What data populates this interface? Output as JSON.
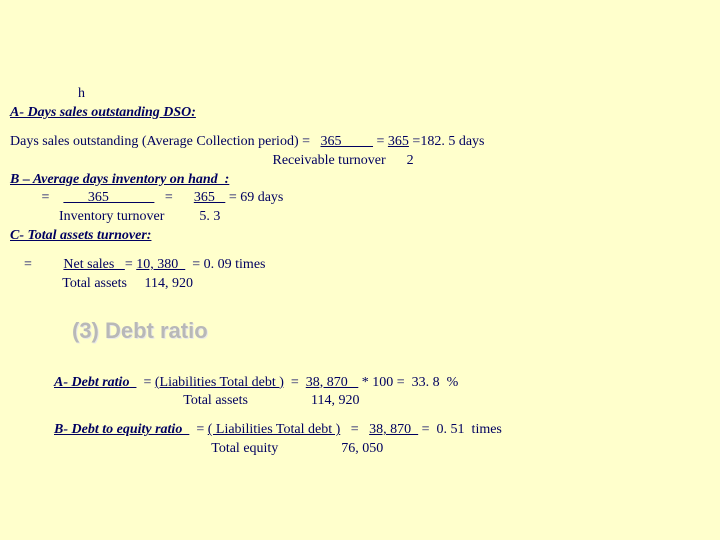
{
  "stray_h": "h",
  "sectionA": {
    "heading": "A- Days sales outstanding DSO:",
    "line1_pre": "Days sales outstanding (Average Collection period) =   ",
    "line1_u1": "365         ",
    "line1_mid": " = ",
    "line1_u2": "365",
    "line1_post": " =182. 5 days",
    "line2": "                                                                           Receivable turnover      2"
  },
  "sectionB": {
    "heading": "B – Average days inventory on hand  :",
    "line1_pre": "         =    ",
    "line1_u1": "       365             ",
    "line1_mid": "   =      ",
    "line1_u2": "365   ",
    "line1_post": " = 69 days",
    "line2": "              Inventory turnover          5. 3"
  },
  "sectionC": {
    "heading": "C- Total assets turnover:",
    "line1_pre": "    =         ",
    "line1_u1": "Net sales   ",
    "line1_mid": "= ",
    "line1_u2": "10, 380  ",
    "line1_post": "  = 0. 09 times",
    "line2": "               Total assets     114, 920"
  },
  "debtRatioTitle": "(3) Debt ratio",
  "debtA": {
    "label": "A- Debt ratio  ",
    "mid1": "  = ",
    "u1": "(Liabilities Total debt )",
    "mid2": "  =  ",
    "u2": "38, 870   ",
    "post": " * 100 =  33. 8  %",
    "line2": "                                     Total assets                  114, 920"
  },
  "debtB": {
    "label": "B- Debt to equity ratio  ",
    "mid1": "  = ",
    "u1": "( Liabilities Total debt )",
    "mid2": "   =   ",
    "u2": "38, 870  ",
    "post": " =  0. 51  times",
    "line2": "                                             Total equity                  76, 050"
  }
}
